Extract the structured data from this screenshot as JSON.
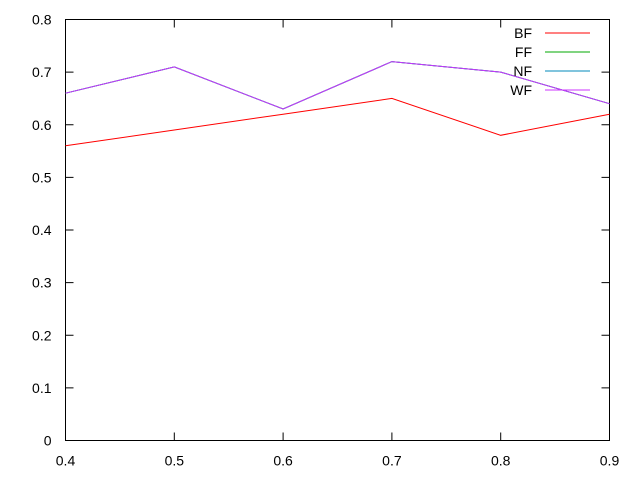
{
  "chart_data": {
    "type": "line",
    "title": "",
    "xlabel": "",
    "ylabel": "",
    "xlim": [
      0.4,
      0.9
    ],
    "ylim": [
      0,
      0.8
    ],
    "x_ticks": [
      "0.4",
      "0.5",
      "0.6",
      "0.7",
      "0.8",
      "0.9"
    ],
    "y_ticks": [
      "0",
      "0.1",
      "0.2",
      "0.3",
      "0.4",
      "0.5",
      "0.6",
      "0.7",
      "0.8"
    ],
    "grid": false,
    "legend_position": "top-right",
    "x": [
      0.4,
      0.5,
      0.6,
      0.7,
      0.8,
      0.9
    ],
    "series": [
      {
        "name": "BF",
        "color": "#ff0000",
        "values": [
          0.56,
          0.59,
          0.62,
          0.65,
          0.58,
          0.62
        ]
      },
      {
        "name": "FF",
        "color": "#00aa00",
        "values": [
          0.66,
          0.71,
          0.63,
          0.72,
          0.7,
          0.64
        ]
      },
      {
        "name": "NF",
        "color": "#0088bb",
        "values": [
          0.66,
          0.71,
          0.63,
          0.72,
          0.7,
          0.64
        ]
      },
      {
        "name": "WF",
        "color": "#cc33ff",
        "values": [
          0.66,
          0.71,
          0.63,
          0.72,
          0.7,
          0.64
        ]
      }
    ]
  }
}
